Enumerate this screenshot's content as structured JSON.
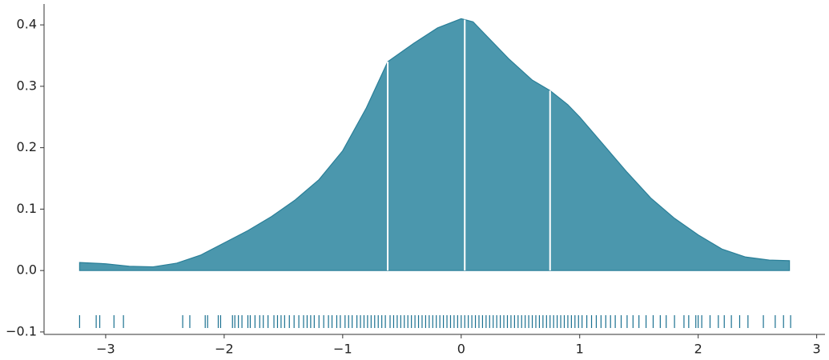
{
  "chart_data": {
    "type": "kde",
    "color": "#4b97ad",
    "edge_color": "#2a7f98",
    "rug_color": "#1a7090",
    "x": [
      -3.22,
      -3.0,
      -2.8,
      -2.6,
      -2.4,
      -2.2,
      -2.0,
      -1.8,
      -1.6,
      -1.4,
      -1.2,
      -1.0,
      -0.8,
      -0.62,
      -0.4,
      -0.2,
      0.0,
      0.1,
      0.2,
      0.4,
      0.6,
      0.75,
      0.9,
      1.0,
      1.2,
      1.4,
      1.6,
      1.8,
      2.0,
      2.2,
      2.4,
      2.6,
      2.77
    ],
    "values": [
      0.013,
      0.011,
      0.007,
      0.006,
      0.012,
      0.025,
      0.045,
      0.065,
      0.088,
      0.115,
      0.148,
      0.195,
      0.265,
      0.34,
      0.37,
      0.395,
      0.41,
      0.405,
      0.385,
      0.345,
      0.31,
      0.293,
      0.27,
      0.25,
      0.205,
      0.16,
      0.118,
      0.085,
      0.058,
      0.035,
      0.022,
      0.017,
      0.016
    ],
    "quartiles": [
      -0.62,
      0.03,
      0.75
    ],
    "rug": [
      -3.22,
      -3.08,
      -3.05,
      -2.93,
      -2.85,
      -2.35,
      -2.29,
      -2.16,
      -2.14,
      -2.05,
      -2.03,
      -1.93,
      -1.91,
      -1.88,
      -1.85,
      -1.8,
      -1.78,
      -1.74,
      -1.7,
      -1.67,
      -1.63,
      -1.58,
      -1.55,
      -1.52,
      -1.49,
      -1.45,
      -1.41,
      -1.37,
      -1.33,
      -1.3,
      -1.27,
      -1.24,
      -1.2,
      -1.16,
      -1.12,
      -1.09,
      -1.05,
      -1.02,
      -0.98,
      -0.95,
      -0.92,
      -0.88,
      -0.85,
      -0.82,
      -0.79,
      -0.76,
      -0.73,
      -0.7,
      -0.67,
      -0.64,
      -0.6,
      -0.57,
      -0.54,
      -0.51,
      -0.48,
      -0.45,
      -0.42,
      -0.39,
      -0.36,
      -0.33,
      -0.3,
      -0.27,
      -0.24,
      -0.21,
      -0.18,
      -0.15,
      -0.12,
      -0.09,
      -0.06,
      -0.03,
      0.0,
      0.03,
      0.06,
      0.09,
      0.12,
      0.15,
      0.18,
      0.21,
      0.24,
      0.27,
      0.3,
      0.33,
      0.36,
      0.39,
      0.42,
      0.45,
      0.48,
      0.51,
      0.54,
      0.57,
      0.6,
      0.63,
      0.66,
      0.69,
      0.72,
      0.75,
      0.78,
      0.81,
      0.84,
      0.87,
      0.9,
      0.93,
      0.96,
      0.99,
      1.02,
      1.06,
      1.1,
      1.14,
      1.18,
      1.22,
      1.26,
      1.3,
      1.35,
      1.4,
      1.45,
      1.5,
      1.56,
      1.62,
      1.68,
      1.73,
      1.8,
      1.88,
      1.92,
      1.98,
      2.0,
      2.03,
      2.1,
      2.17,
      2.22,
      2.28,
      2.35,
      2.42,
      2.55,
      2.65,
      2.72,
      2.78
    ],
    "xlim": [
      -3.52,
      3.07
    ],
    "ylim": [
      -0.104,
      0.434
    ],
    "xticks": [
      {
        "value": -3,
        "label": "−3"
      },
      {
        "value": -2,
        "label": "−2"
      },
      {
        "value": -1,
        "label": "−1"
      },
      0,
      1,
      2,
      3
    ],
    "yticks": [
      {
        "value": -0.1,
        "label": "−0.1"
      },
      {
        "value": 0,
        "label": "0.0"
      },
      0.1,
      0.2,
      0.3,
      0.4
    ]
  }
}
